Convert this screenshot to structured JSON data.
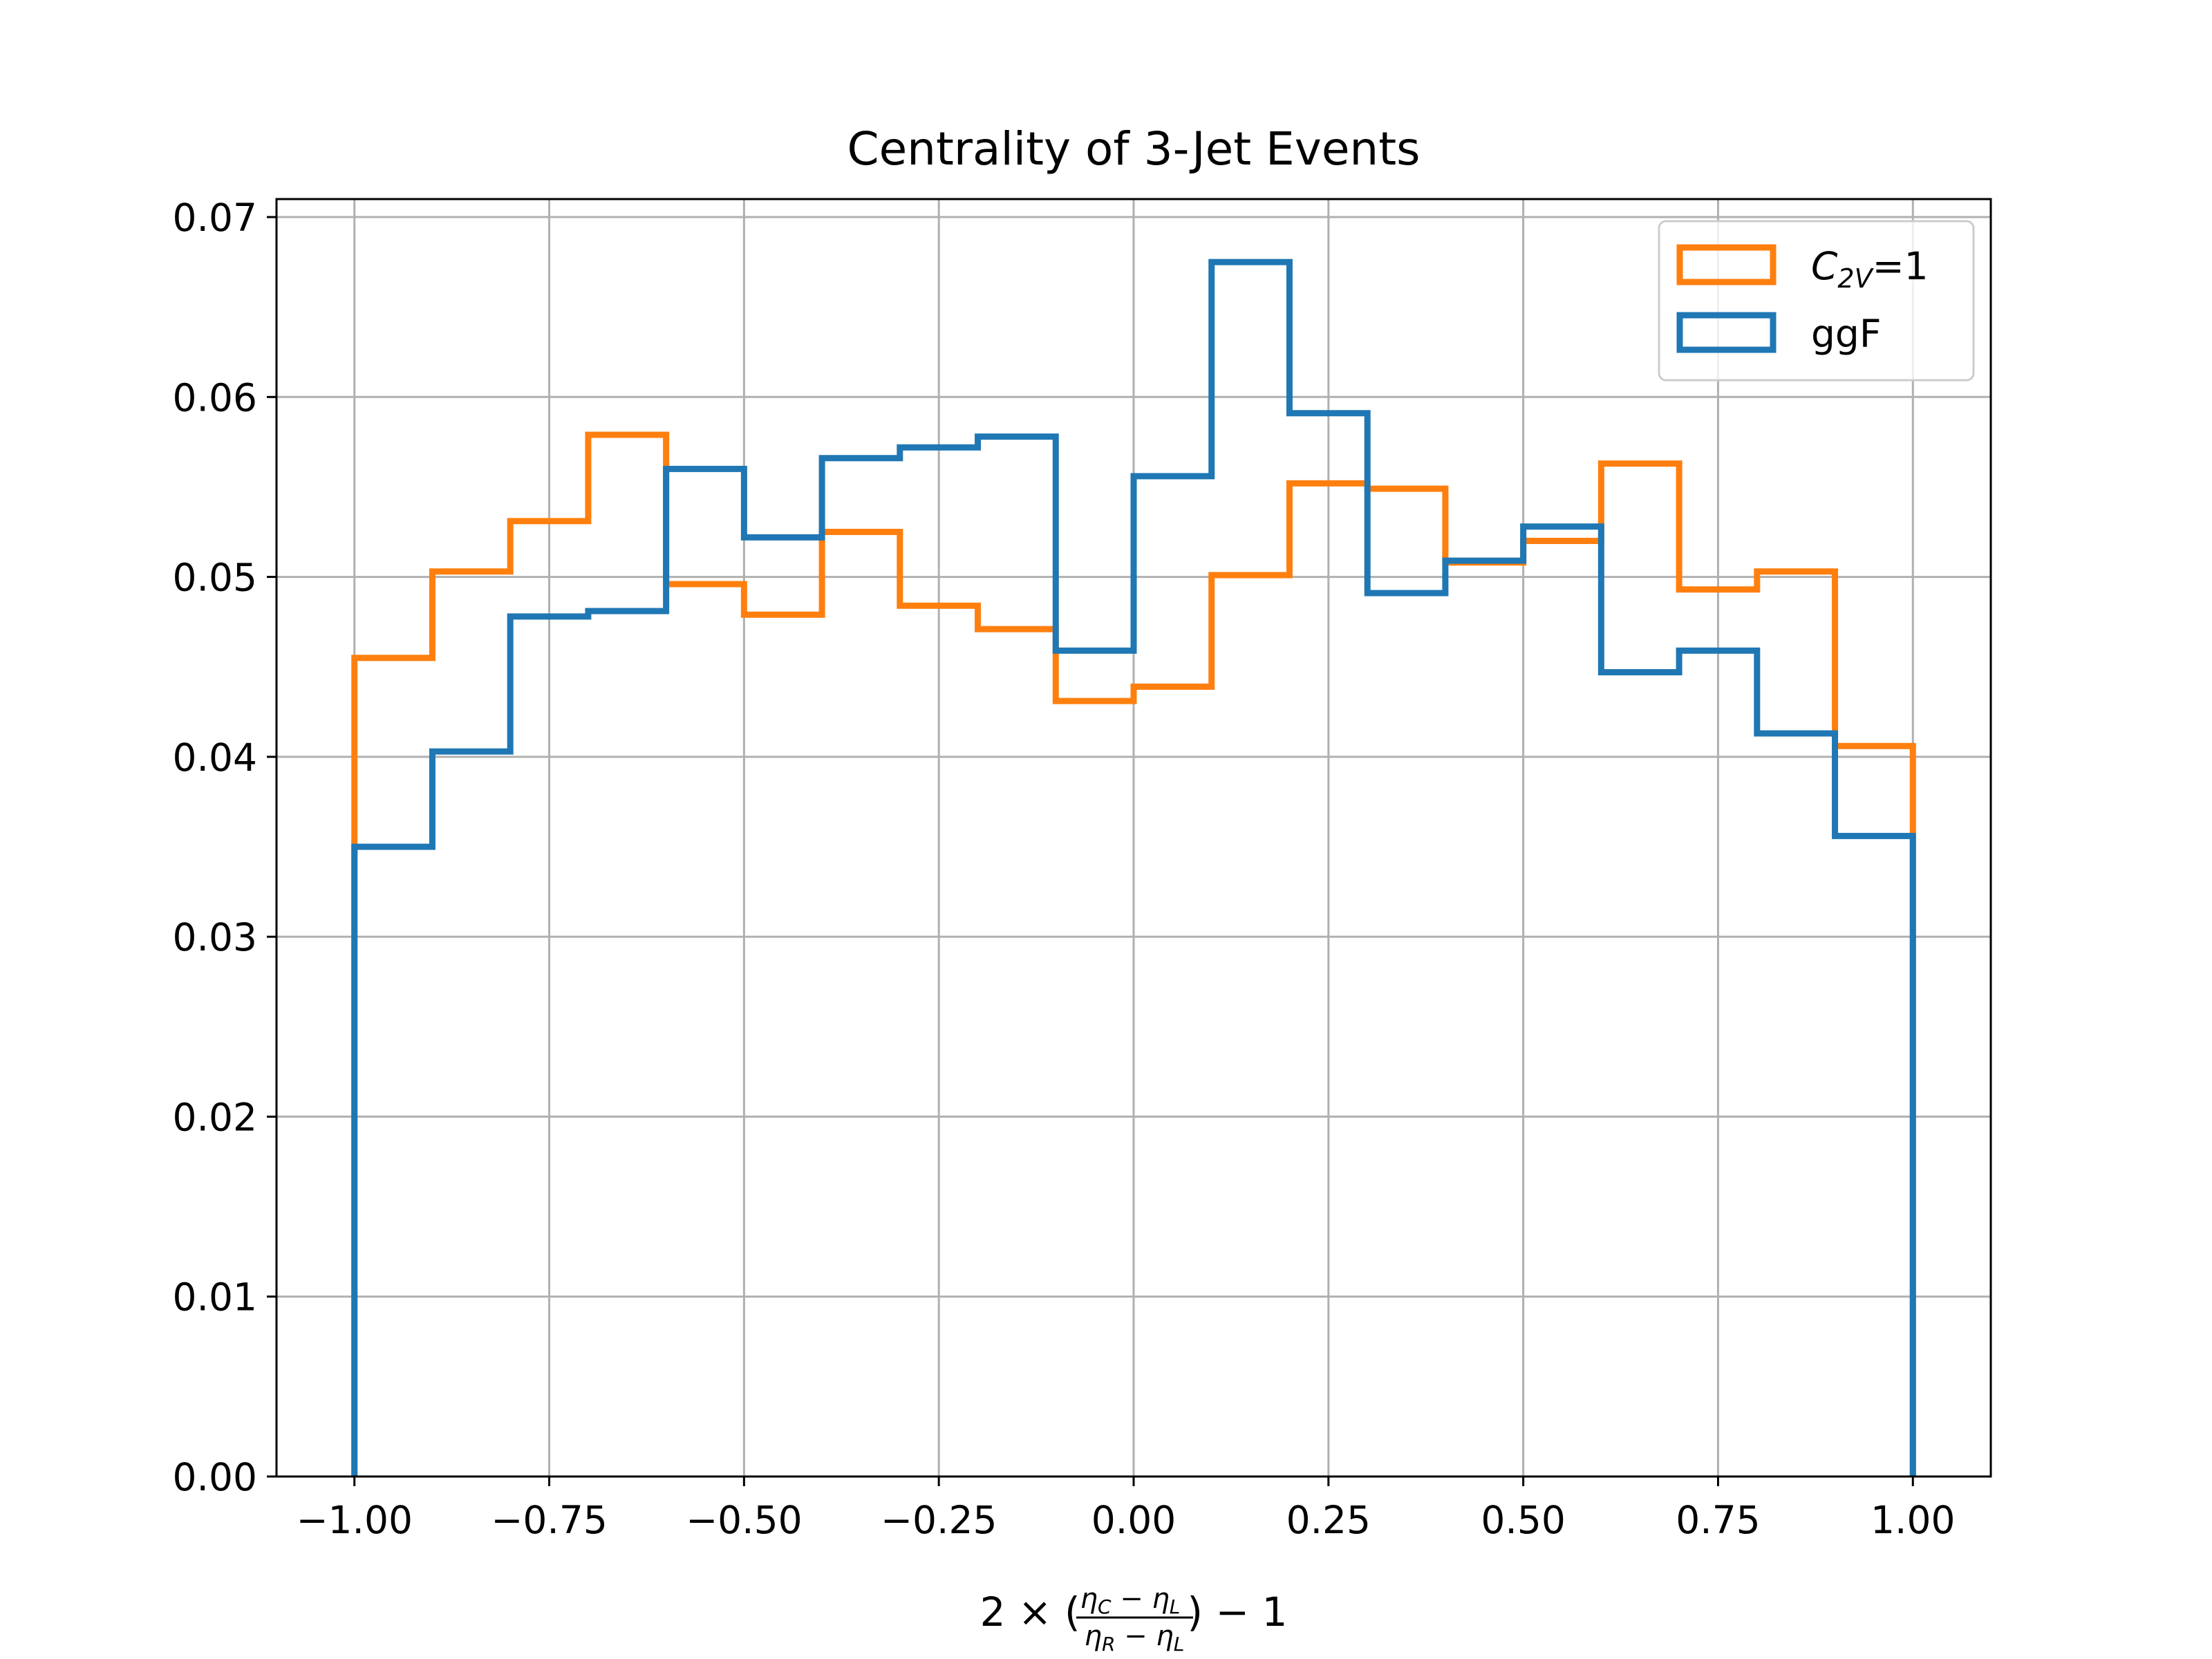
{
  "chart_data": {
    "type": "step",
    "title": "Centrality of 3-Jet Events",
    "xlabel": {
      "prefix": "2 × (",
      "numerator": "η",
      "numerator_sub_a": "C",
      "numerator_mid": " − η",
      "numerator_sub_b": "L",
      "denominator": "η",
      "denominator_sub_a": "R",
      "denominator_mid": " − η",
      "denominator_sub_b": "L",
      "suffix": ") − 1"
    },
    "ylabel": "",
    "xlim": [
      -1.1,
      1.1
    ],
    "ylim": [
      0,
      0.071
    ],
    "xticks": [
      -1.0,
      -0.75,
      -0.5,
      -0.25,
      0.0,
      0.25,
      0.5,
      0.75,
      1.0
    ],
    "xtick_labels": [
      "−1.00",
      "−0.75",
      "−0.50",
      "−0.25",
      "0.00",
      "0.25",
      "0.50",
      "0.75",
      "1.00"
    ],
    "yticks": [
      0,
      0.01,
      0.02,
      0.03,
      0.04,
      0.05,
      0.06,
      0.07
    ],
    "ytick_labels": [
      "0.00",
      "0.01",
      "0.02",
      "0.03",
      "0.04",
      "0.05",
      "0.06",
      "0.07"
    ],
    "grid": true,
    "legend_position": "top-right",
    "bin_edges": [
      -1.0,
      -0.9,
      -0.8,
      -0.7,
      -0.6,
      -0.5,
      -0.4,
      -0.3,
      -0.2,
      -0.1,
      0.0,
      0.1,
      0.2,
      0.3,
      0.4,
      0.5,
      0.6,
      0.7,
      0.8,
      0.9,
      1.0
    ],
    "series": [
      {
        "name": "C",
        "name_sub": "2V",
        "name_suffix": "=1",
        "color": "#ff7f0e",
        "values": [
          0.0455,
          0.0503,
          0.0531,
          0.0579,
          0.0496,
          0.0479,
          0.0525,
          0.0484,
          0.0471,
          0.0431,
          0.0439,
          0.0501,
          0.0552,
          0.0549,
          0.0508,
          0.052,
          0.0563,
          0.0493,
          0.0503,
          0.0406
        ]
      },
      {
        "name": "ggF",
        "color": "#1f77b4",
        "values": [
          0.035,
          0.0403,
          0.0478,
          0.0481,
          0.056,
          0.0522,
          0.0566,
          0.0572,
          0.0578,
          0.0459,
          0.0556,
          0.0675,
          0.0591,
          0.0491,
          0.0509,
          0.0528,
          0.0447,
          0.0459,
          0.0413,
          0.0356
        ]
      }
    ]
  }
}
